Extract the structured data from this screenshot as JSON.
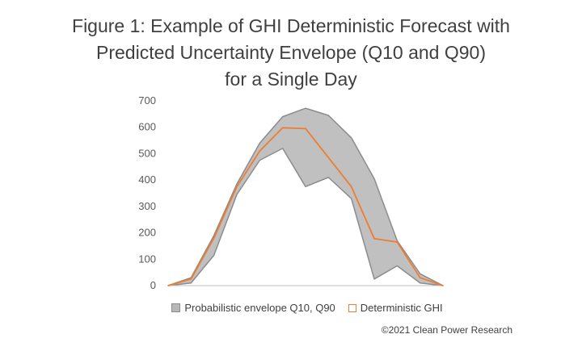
{
  "title": {
    "line1": "Figure 1: Example of GHI Deterministic Forecast with",
    "line2": "Predicted Uncertainty Envelope (Q10 and Q90)",
    "line3": "for a Single Day"
  },
  "copyright": "©2021 Clean Power Research",
  "colors": {
    "envelope_fill": "#c0c0c0",
    "envelope_stroke": "#8c8c8c",
    "deterministic_line": "#ed7d31",
    "axis": "#bfbfbf"
  },
  "chart_data": {
    "type": "area",
    "title": "Figure 1: Example of GHI Deterministic Forecast with Predicted Uncertainty Envelope (Q10 and Q90) for a Single Day",
    "xlabel": "",
    "ylabel": "",
    "ylim": [
      0,
      700
    ],
    "yticks": [
      0,
      100,
      200,
      300,
      400,
      500,
      600,
      700
    ],
    "grid": false,
    "legend_position": "bottom",
    "x": [
      0,
      1,
      2,
      3,
      4,
      5,
      6,
      7,
      8,
      9,
      10,
      11,
      12
    ],
    "series": [
      {
        "name": "Probabilistic envelope Q10, Q90",
        "kind": "band",
        "upper": [
          0,
          30,
          190,
          385,
          540,
          640,
          672,
          645,
          560,
          405,
          170,
          45,
          0
        ],
        "lower": [
          0,
          10,
          115,
          345,
          475,
          520,
          375,
          410,
          330,
          25,
          75,
          10,
          0
        ]
      },
      {
        "name": "Deterministic GHI",
        "kind": "line",
        "values": [
          0,
          25,
          180,
          375,
          510,
          598,
          595,
          485,
          375,
          178,
          165,
          30,
          0
        ]
      }
    ]
  }
}
